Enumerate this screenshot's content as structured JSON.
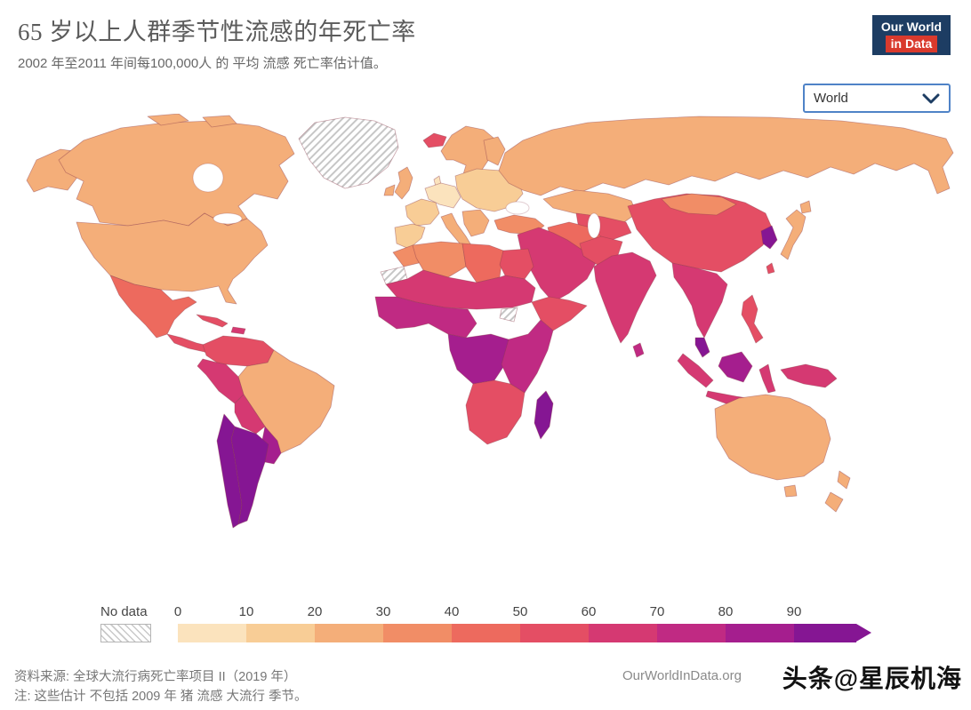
{
  "header": {
    "title": "65 岁以上人群季节性流感的年死亡率",
    "subtitle": "2002 年至2011 年间每100,000人 的 平均 流感 死亡率估计值。",
    "logo": {
      "line1": "Our World",
      "line2": "in Data",
      "bg_color": "#1d3d63",
      "accent_color": "#d93a2d"
    }
  },
  "controls": {
    "region_selector": {
      "value": "World"
    }
  },
  "legend": {
    "no_data_label": "No data"
  },
  "footer": {
    "source": "资料来源: 全球大流行病死亡率项目 II（2019 年）",
    "note": "注: 这些估计 不包括 2009 年 猪 流感 大流行 季节。",
    "url": "OurWorldInData.org",
    "watermark": "头条@星辰机海"
  },
  "chart_data": {
    "type": "heatmap",
    "subtype": "choropleth-world-map",
    "title": "65 岁以上人群季节性流感的年死亡率",
    "unit": "每 100,000 人的年均流感死亡率估计值 (2002-2011)",
    "legend_position": "bottom",
    "scale": {
      "ticks": [
        "0",
        "10",
        "20",
        "30",
        "40",
        "50",
        "60",
        "70",
        "80",
        "90"
      ],
      "bucket_colors": [
        "#fbe3bd",
        "#f8cd96",
        "#f4ae79",
        "#f18d66",
        "#ed6a5e",
        "#e44e64",
        "#d53972",
        "#c02a83",
        "#a51e8e",
        "#851693"
      ],
      "open_ended": true,
      "no_data_style": "hatched"
    },
    "regions": [
      {
        "id": "canada",
        "label": "Canada",
        "value_range": "20-30",
        "color": "#f4ae79"
      },
      {
        "id": "usa",
        "label": "United States",
        "value_range": "20-30",
        "color": "#f4ae79"
      },
      {
        "id": "greenland",
        "label": "Greenland",
        "value_range": "no data",
        "color": null
      },
      {
        "id": "mexico",
        "label": "Mexico",
        "value_range": "40-50",
        "color": "#ed6a5e"
      },
      {
        "id": "central-america",
        "label": "Central America",
        "value_range": "50-60",
        "color": "#e44e64"
      },
      {
        "id": "cuba",
        "label": "Cuba",
        "value_range": "50-60",
        "color": "#e44e64"
      },
      {
        "id": "hispaniola",
        "label": "Haiti / Dominican Republic",
        "value_range": "60-70",
        "color": "#d53972"
      },
      {
        "id": "colombia-venezuela",
        "label": "Colombia / Venezuela",
        "value_range": "50-60",
        "color": "#e44e64"
      },
      {
        "id": "peru",
        "label": "Peru / Ecuador",
        "value_range": "60-70",
        "color": "#d53972"
      },
      {
        "id": "brazil",
        "label": "Brazil",
        "value_range": "20-30",
        "color": "#f4ae79"
      },
      {
        "id": "bolivia",
        "label": "Bolivia",
        "value_range": "60-70",
        "color": "#d53972"
      },
      {
        "id": "paraguay-uruguay",
        "label": "Paraguay / Uruguay",
        "value_range": "80-90",
        "color": "#a51e8e"
      },
      {
        "id": "argentina",
        "label": "Argentina",
        "value_range": "90+",
        "color": "#851693"
      },
      {
        "id": "chile",
        "label": "Chile",
        "value_range": "90+",
        "color": "#851693"
      },
      {
        "id": "iceland",
        "label": "Iceland",
        "value_range": "50-60",
        "color": "#e44e64"
      },
      {
        "id": "uk-ireland",
        "label": "United Kingdom / Ireland",
        "value_range": "20-30",
        "color": "#f4ae79"
      },
      {
        "id": "france",
        "label": "France",
        "value_range": "10-20",
        "color": "#f8cd96"
      },
      {
        "id": "iberia",
        "label": "Spain / Portugal",
        "value_range": "10-20",
        "color": "#f8cd96"
      },
      {
        "id": "central-europe",
        "label": "Germany / Central Europe",
        "value_range": "0-10",
        "color": "#fbe3bd"
      },
      {
        "id": "italy",
        "label": "Italy",
        "value_range": "20-30",
        "color": "#f4ae79"
      },
      {
        "id": "scandinavia",
        "label": "Scandinavia",
        "value_range": "20-30",
        "color": "#f4ae79"
      },
      {
        "id": "eastern-europe",
        "label": "Eastern Europe",
        "value_range": "10-20",
        "color": "#f8cd96"
      },
      {
        "id": "balkans",
        "label": "Balkans",
        "value_range": "20-30",
        "color": "#f4ae79"
      },
      {
        "id": "russia",
        "label": "Russia",
        "value_range": "20-30",
        "color": "#f4ae79"
      },
      {
        "id": "kazakhstan",
        "label": "Kazakhstan",
        "value_range": "20-30",
        "color": "#f4ae79"
      },
      {
        "id": "central-asia",
        "label": "Central Asia",
        "value_range": "50-60",
        "color": "#e44e64"
      },
      {
        "id": "turkey",
        "label": "Turkey",
        "value_range": "30-40",
        "color": "#f18d66"
      },
      {
        "id": "iran",
        "label": "Iran",
        "value_range": "40-50",
        "color": "#ed6a5e"
      },
      {
        "id": "middle-east",
        "label": "Arabian Peninsula / Middle East",
        "value_range": "60-70",
        "color": "#d53972"
      },
      {
        "id": "morocco",
        "label": "Morocco",
        "value_range": "30-40",
        "color": "#f18d66"
      },
      {
        "id": "algeria",
        "label": "Algeria",
        "value_range": "30-40",
        "color": "#f18d66"
      },
      {
        "id": "libya",
        "label": "Libya",
        "value_range": "40-50",
        "color": "#ed6a5e"
      },
      {
        "id": "egypt",
        "label": "Egypt",
        "value_range": "50-60",
        "color": "#e44e64"
      },
      {
        "id": "western-sahara",
        "label": "Western Sahara",
        "value_range": "no data",
        "color": null
      },
      {
        "id": "sahel-sudan",
        "label": "Sahel / Sudan",
        "value_range": "60-70",
        "color": "#d53972"
      },
      {
        "id": "west-africa",
        "label": "West Africa",
        "value_range": "70-80",
        "color": "#c02a83"
      },
      {
        "id": "horn-of-africa",
        "label": "Horn of Africa",
        "value_range": "50-60",
        "color": "#e44e64"
      },
      {
        "id": "south-sudan",
        "label": "South Sudan",
        "value_range": "no data",
        "color": null
      },
      {
        "id": "central-africa",
        "label": "Central Africa",
        "value_range": "80-90",
        "color": "#a51e8e"
      },
      {
        "id": "east-africa",
        "label": "East Africa",
        "value_range": "70-80",
        "color": "#c02a83"
      },
      {
        "id": "southern-africa",
        "label": "Southern Africa",
        "value_range": "50-60",
        "color": "#e44e64"
      },
      {
        "id": "madagascar",
        "label": "Madagascar",
        "value_range": "90+",
        "color": "#851693"
      },
      {
        "id": "india",
        "label": "India",
        "value_range": "60-70",
        "color": "#d53972"
      },
      {
        "id": "sri-lanka",
        "label": "Sri Lanka",
        "value_range": "70-80",
        "color": "#c02a83"
      },
      {
        "id": "pakistan-afghanistan",
        "label": "Pakistan / Afghanistan",
        "value_range": "50-60",
        "color": "#e44e64"
      },
      {
        "id": "china",
        "label": "China",
        "value_range": "50-60",
        "color": "#e44e64"
      },
      {
        "id": "mongolia",
        "label": "Mongolia",
        "value_range": "30-40",
        "color": "#f18d66"
      },
      {
        "id": "korea",
        "label": "Korea",
        "value_range": "90+",
        "color": "#851693"
      },
      {
        "id": "japan",
        "label": "Japan",
        "value_range": "20-30",
        "color": "#f4ae79"
      },
      {
        "id": "taiwan",
        "label": "Taiwan",
        "value_range": "50-60",
        "color": "#e44e64"
      },
      {
        "id": "mainland-se-asia",
        "label": "Mainland Southeast Asia",
        "value_range": "60-70",
        "color": "#d53972"
      },
      {
        "id": "malaysia",
        "label": "Malaysia",
        "value_range": "90+",
        "color": "#851693"
      },
      {
        "id": "sumatra",
        "label": "Sumatra (Indonesia)",
        "value_range": "60-70",
        "color": "#d53972"
      },
      {
        "id": "borneo",
        "label": "Borneo",
        "value_range": "80-90",
        "color": "#a51e8e"
      },
      {
        "id": "java",
        "label": "Java (Indonesia)",
        "value_range": "60-70",
        "color": "#d53972"
      },
      {
        "id": "sulawesi",
        "label": "Sulawesi (Indonesia)",
        "value_range": "60-70",
        "color": "#d53972"
      },
      {
        "id": "timor",
        "label": "Timor",
        "value_range": "60-70",
        "color": "#d53972"
      },
      {
        "id": "philippines",
        "label": "Philippines",
        "value_range": "50-60",
        "color": "#e44e64"
      },
      {
        "id": "new-guinea",
        "label": "Papua New Guinea",
        "value_range": "60-70",
        "color": "#d53972"
      },
      {
        "id": "australia",
        "label": "Australia",
        "value_range": "20-30",
        "color": "#f4ae79"
      },
      {
        "id": "new-zealand",
        "label": "New Zealand",
        "value_range": "20-30",
        "color": "#f4ae79"
      }
    ]
  }
}
